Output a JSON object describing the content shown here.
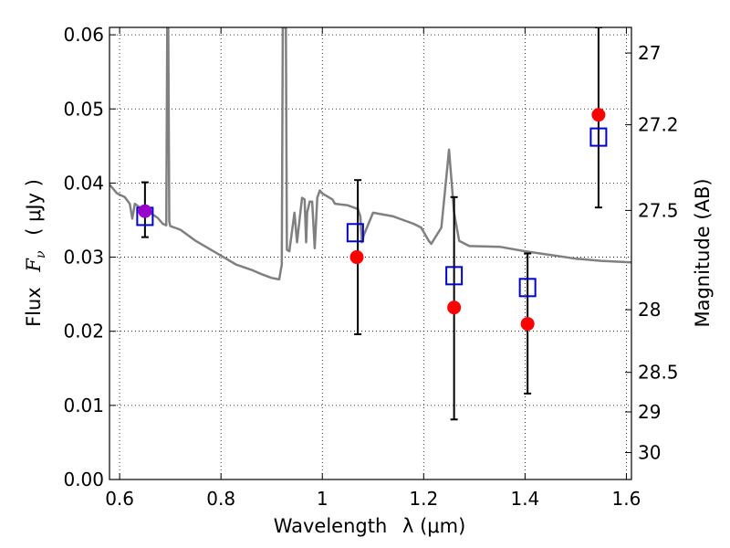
{
  "chart_data": {
    "type": "scatter",
    "title": "",
    "xlabel": "Wavelength",
    "xlabel_math": "λ (μm)",
    "ylabel": "Flux",
    "ylabel_math": "F",
    "ylabel_math_sub": "ν",
    "ylabel_unit": "( μJy )",
    "ylabel_right": "Magnitude (AB)",
    "xlim": [
      0.58,
      1.61
    ],
    "ylim": [
      0.0,
      0.061
    ],
    "grid": true,
    "grid_style": "dotted",
    "x_ticks": [
      0.6,
      0.8,
      1.0,
      1.2,
      1.4,
      1.6
    ],
    "x_tick_labels": [
      "0.6",
      "0.8",
      "1",
      "1.2",
      "1.4",
      "1.6"
    ],
    "y_ticks": [
      0.0,
      0.01,
      0.02,
      0.03,
      0.04,
      0.05,
      0.06
    ],
    "y_tick_labels": [
      "0.00",
      "0.01",
      "0.02",
      "0.03",
      "0.04",
      "0.05",
      "0.06"
    ],
    "right_ticks": [
      {
        "label": "27",
        "mag": 27.0
      },
      {
        "label": "27.2",
        "mag": 27.2
      },
      {
        "label": "27.5",
        "mag": 27.5
      },
      {
        "label": "28",
        "mag": 28.0
      },
      {
        "label": "28.5",
        "mag": 28.5
      },
      {
        "label": "29",
        "mag": 29.0
      },
      {
        "label": "30",
        "mag": 30.0
      }
    ],
    "series": [
      {
        "kind": "line",
        "color": "#808080",
        "points": [
          [
            0.58,
            0.0398
          ],
          [
            0.595,
            0.0386
          ],
          [
            0.61,
            0.0381
          ],
          [
            0.62,
            0.0372
          ],
          [
            0.625,
            0.0352
          ],
          [
            0.63,
            0.0372
          ],
          [
            0.64,
            0.0367
          ],
          [
            0.66,
            0.036
          ],
          [
            0.675,
            0.0353
          ],
          [
            0.685,
            0.0345
          ],
          [
            0.692,
            0.0343
          ],
          [
            0.694,
            0.061
          ],
          [
            0.696,
            0.061
          ],
          [
            0.698,
            0.0348
          ],
          [
            0.7,
            0.0342
          ],
          [
            0.72,
            0.0337
          ],
          [
            0.75,
            0.0322
          ],
          [
            0.78,
            0.031
          ],
          [
            0.8,
            0.0302
          ],
          [
            0.83,
            0.029
          ],
          [
            0.86,
            0.0283
          ],
          [
            0.88,
            0.0277
          ],
          [
            0.9,
            0.0272
          ],
          [
            0.915,
            0.027
          ],
          [
            0.92,
            0.029
          ],
          [
            0.922,
            0.061
          ],
          [
            0.928,
            0.061
          ],
          [
            0.93,
            0.031
          ],
          [
            0.935,
            0.0308
          ],
          [
            0.945,
            0.036
          ],
          [
            0.95,
            0.032
          ],
          [
            0.96,
            0.038
          ],
          [
            0.965,
            0.0378
          ],
          [
            0.968,
            0.032
          ],
          [
            0.97,
            0.036
          ],
          [
            0.975,
            0.0375
          ],
          [
            0.98,
            0.0375
          ],
          [
            0.985,
            0.0312
          ],
          [
            0.99,
            0.038
          ],
          [
            0.995,
            0.039
          ],
          [
            1.0,
            0.0386
          ],
          [
            1.02,
            0.0378
          ],
          [
            1.025,
            0.0372
          ],
          [
            1.05,
            0.037
          ],
          [
            1.07,
            0.0365
          ],
          [
            1.075,
            0.0355
          ],
          [
            1.078,
            0.032
          ],
          [
            1.082,
            0.033
          ],
          [
            1.1,
            0.036
          ],
          [
            1.14,
            0.0355
          ],
          [
            1.16,
            0.035
          ],
          [
            1.18,
            0.0345
          ],
          [
            1.195,
            0.034
          ],
          [
            1.21,
            0.0322
          ],
          [
            1.215,
            0.0318
          ],
          [
            1.235,
            0.034
          ],
          [
            1.25,
            0.0445
          ],
          [
            1.26,
            0.036
          ],
          [
            1.27,
            0.0322
          ],
          [
            1.29,
            0.0315
          ],
          [
            1.35,
            0.0314
          ],
          [
            1.4,
            0.0308
          ],
          [
            1.45,
            0.0303
          ],
          [
            1.5,
            0.0298
          ],
          [
            1.55,
            0.0295
          ],
          [
            1.61,
            0.0293
          ]
        ]
      },
      {
        "kind": "errorbar",
        "name": "",
        "points": [
          {
            "x": 0.65,
            "y_low": 0.0327,
            "y_high": 0.0401
          },
          {
            "x": 1.07,
            "y_low": 0.0196,
            "y_high": 0.0404
          },
          {
            "x": 1.26,
            "y_low": 0.0081,
            "y_high": 0.0381
          },
          {
            "x": 1.405,
            "y_low": 0.0116,
            "y_high": 0.0305
          },
          {
            "x": 1.545,
            "y_low": 0.0367,
            "y_high": 0.061
          }
        ]
      },
      {
        "kind": "square",
        "color": "#0000cc",
        "points": [
          [
            0.65,
            0.0355
          ],
          [
            1.065,
            0.0333
          ],
          [
            1.26,
            0.0275
          ],
          [
            1.405,
            0.0259
          ],
          [
            1.545,
            0.0462
          ]
        ]
      },
      {
        "kind": "circle",
        "color": "#ff0000",
        "points": [
          [
            1.068,
            0.03
          ],
          [
            1.26,
            0.0232
          ],
          [
            1.405,
            0.021
          ],
          [
            1.545,
            0.0492
          ]
        ]
      },
      {
        "kind": "circle",
        "color": "#9900cc",
        "points": [
          [
            0.65,
            0.0362
          ]
        ]
      }
    ]
  }
}
